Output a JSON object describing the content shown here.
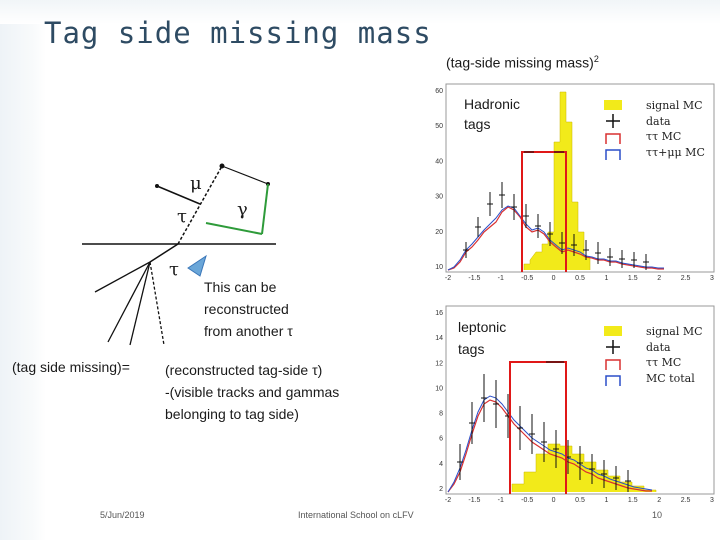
{
  "slide": {
    "title": "Tag side missing mass",
    "footer_date": "5/Jun/2019",
    "footer_center": "International School on cLFV",
    "page_number": "10"
  },
  "plot_header": {
    "text": "(tag-side missing mass)",
    "superscript": "2"
  },
  "diagram": {
    "labels": {
      "mu": "μ",
      "tau_upper": "τ",
      "gamma": "γ",
      "tau_lower": "τ"
    },
    "note": "This can be\nreconstructed\nfrom another τ"
  },
  "equation": {
    "lhs": "(tag side missing)=",
    "rhs": "(reconstructed tag-side τ)\n-(visible tracks and gammas\nbelonging to tag side)"
  },
  "hadronic_plot": {
    "label": "Hadronic\ntags",
    "y_ticks": [
      "60",
      "50",
      "40",
      "30",
      "20",
      "10"
    ],
    "x_ticks": [
      "-2",
      "-1.5",
      "-1",
      "-0.5",
      "0",
      "0.5",
      "1",
      "1.5",
      "2",
      "2.5",
      "3"
    ],
    "legend": [
      "signal MC",
      "data",
      "ττ MC",
      "ττ+μμ MC"
    ]
  },
  "leptonic_plot": {
    "label": "leptonic\ntags",
    "y_ticks": [
      "16",
      "14",
      "12",
      "10",
      "8",
      "6",
      "4",
      "2"
    ],
    "x_ticks": [
      "-2",
      "-1.5",
      "-1",
      "-0.5",
      "0",
      "0.5",
      "1",
      "1.5",
      "2",
      "2.5",
      "3"
    ],
    "legend": [
      "signal MC",
      "data",
      "ττ MC",
      "MC total"
    ]
  },
  "colors": {
    "title": "#2e4b63",
    "signal": "#f2ea1a",
    "tautau": "#d93030",
    "total": "#2b4fc9",
    "window": "#e01818",
    "photon": "#2e9b3a",
    "pointer": "#6aa6d8"
  }
}
